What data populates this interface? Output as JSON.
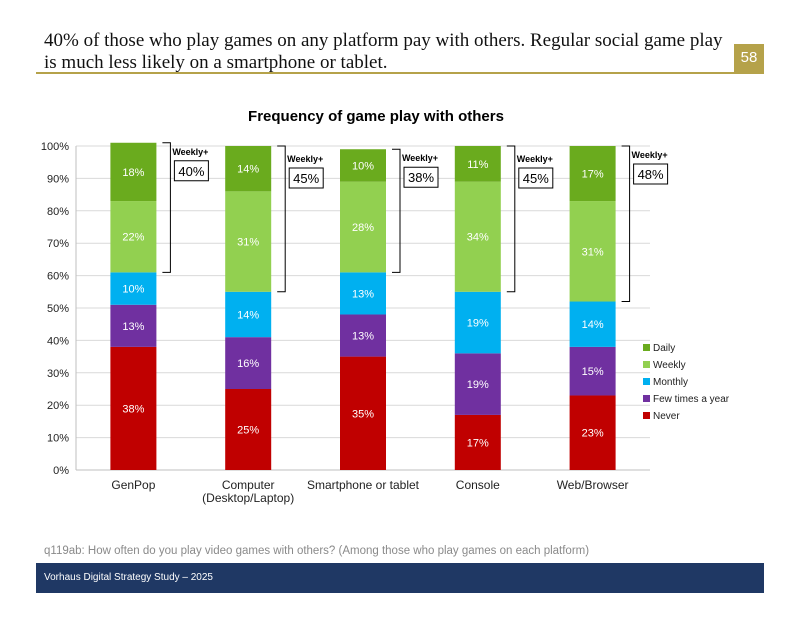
{
  "header": {
    "title": "40% of those who play games on any platform pay with others. Regular social game play is much less likely on a smartphone or tablet.",
    "page_number": "58"
  },
  "footnote": "q119ab: How often do you play video games with others? (Among those who play games on each platform)",
  "footer": {
    "text": "Vorhaus Digital Strategy Study – 2025"
  },
  "colors": {
    "Daily": "#6aab1e",
    "Weekly": "#92d050",
    "Monthly": "#00b0f0",
    "Few times a year": "#7030a0",
    "Never": "#c00000",
    "accent": "#b5a24a",
    "footer": "#1f3864"
  },
  "chart_data": {
    "type": "bar",
    "stacked": true,
    "title": "Frequency of game play with others",
    "xlabel": "",
    "ylabel": "",
    "ylim": [
      0,
      100
    ],
    "yticks": [
      "0%",
      "10%",
      "20%",
      "30%",
      "40%",
      "50%",
      "60%",
      "70%",
      "80%",
      "90%",
      "100%"
    ],
    "categories": [
      "GenPop",
      "Computer\n(Desktop/Laptop)",
      "Smartphone or tablet",
      "Console",
      "Web/Browser"
    ],
    "series": [
      {
        "name": "Never",
        "values": [
          38,
          25,
          35,
          17,
          23
        ],
        "labels": [
          "38%",
          "25%",
          "35%",
          "17%",
          "23%"
        ]
      },
      {
        "name": "Few times a year",
        "values": [
          13,
          16,
          13,
          19,
          15
        ],
        "labels": [
          "13%",
          "16%",
          "13%",
          "19%",
          "15%"
        ]
      },
      {
        "name": "Monthly",
        "values": [
          10,
          14,
          13,
          19,
          14
        ],
        "labels": [
          "10%",
          "14%",
          "13%",
          "19%",
          "14%"
        ]
      },
      {
        "name": "Weekly",
        "values": [
          22,
          31,
          28,
          34,
          31
        ],
        "labels": [
          "22%",
          "31%",
          "28%",
          "34%",
          "31%"
        ]
      },
      {
        "name": "Daily",
        "values": [
          18,
          14,
          10,
          11,
          17
        ],
        "labels": [
          "18%",
          "14%",
          "10%",
          "11%",
          "17%"
        ]
      }
    ],
    "legend": {
      "position": "right",
      "order": [
        "Daily",
        "Weekly",
        "Monthly",
        "Few times a year",
        "Never"
      ]
    },
    "annotations": [
      {
        "category": "GenPop",
        "label": "Weekly+",
        "value": "40%"
      },
      {
        "category": "Computer\n(Desktop/Laptop)",
        "label": "Weekly+",
        "value": "45%"
      },
      {
        "category": "Smartphone or tablet",
        "label": "Weekly+",
        "value": "38%"
      },
      {
        "category": "Console",
        "label": "Weekly+",
        "value": "45%"
      },
      {
        "category": "Web/Browser",
        "label": "Weekly+",
        "value": "48%"
      }
    ]
  }
}
